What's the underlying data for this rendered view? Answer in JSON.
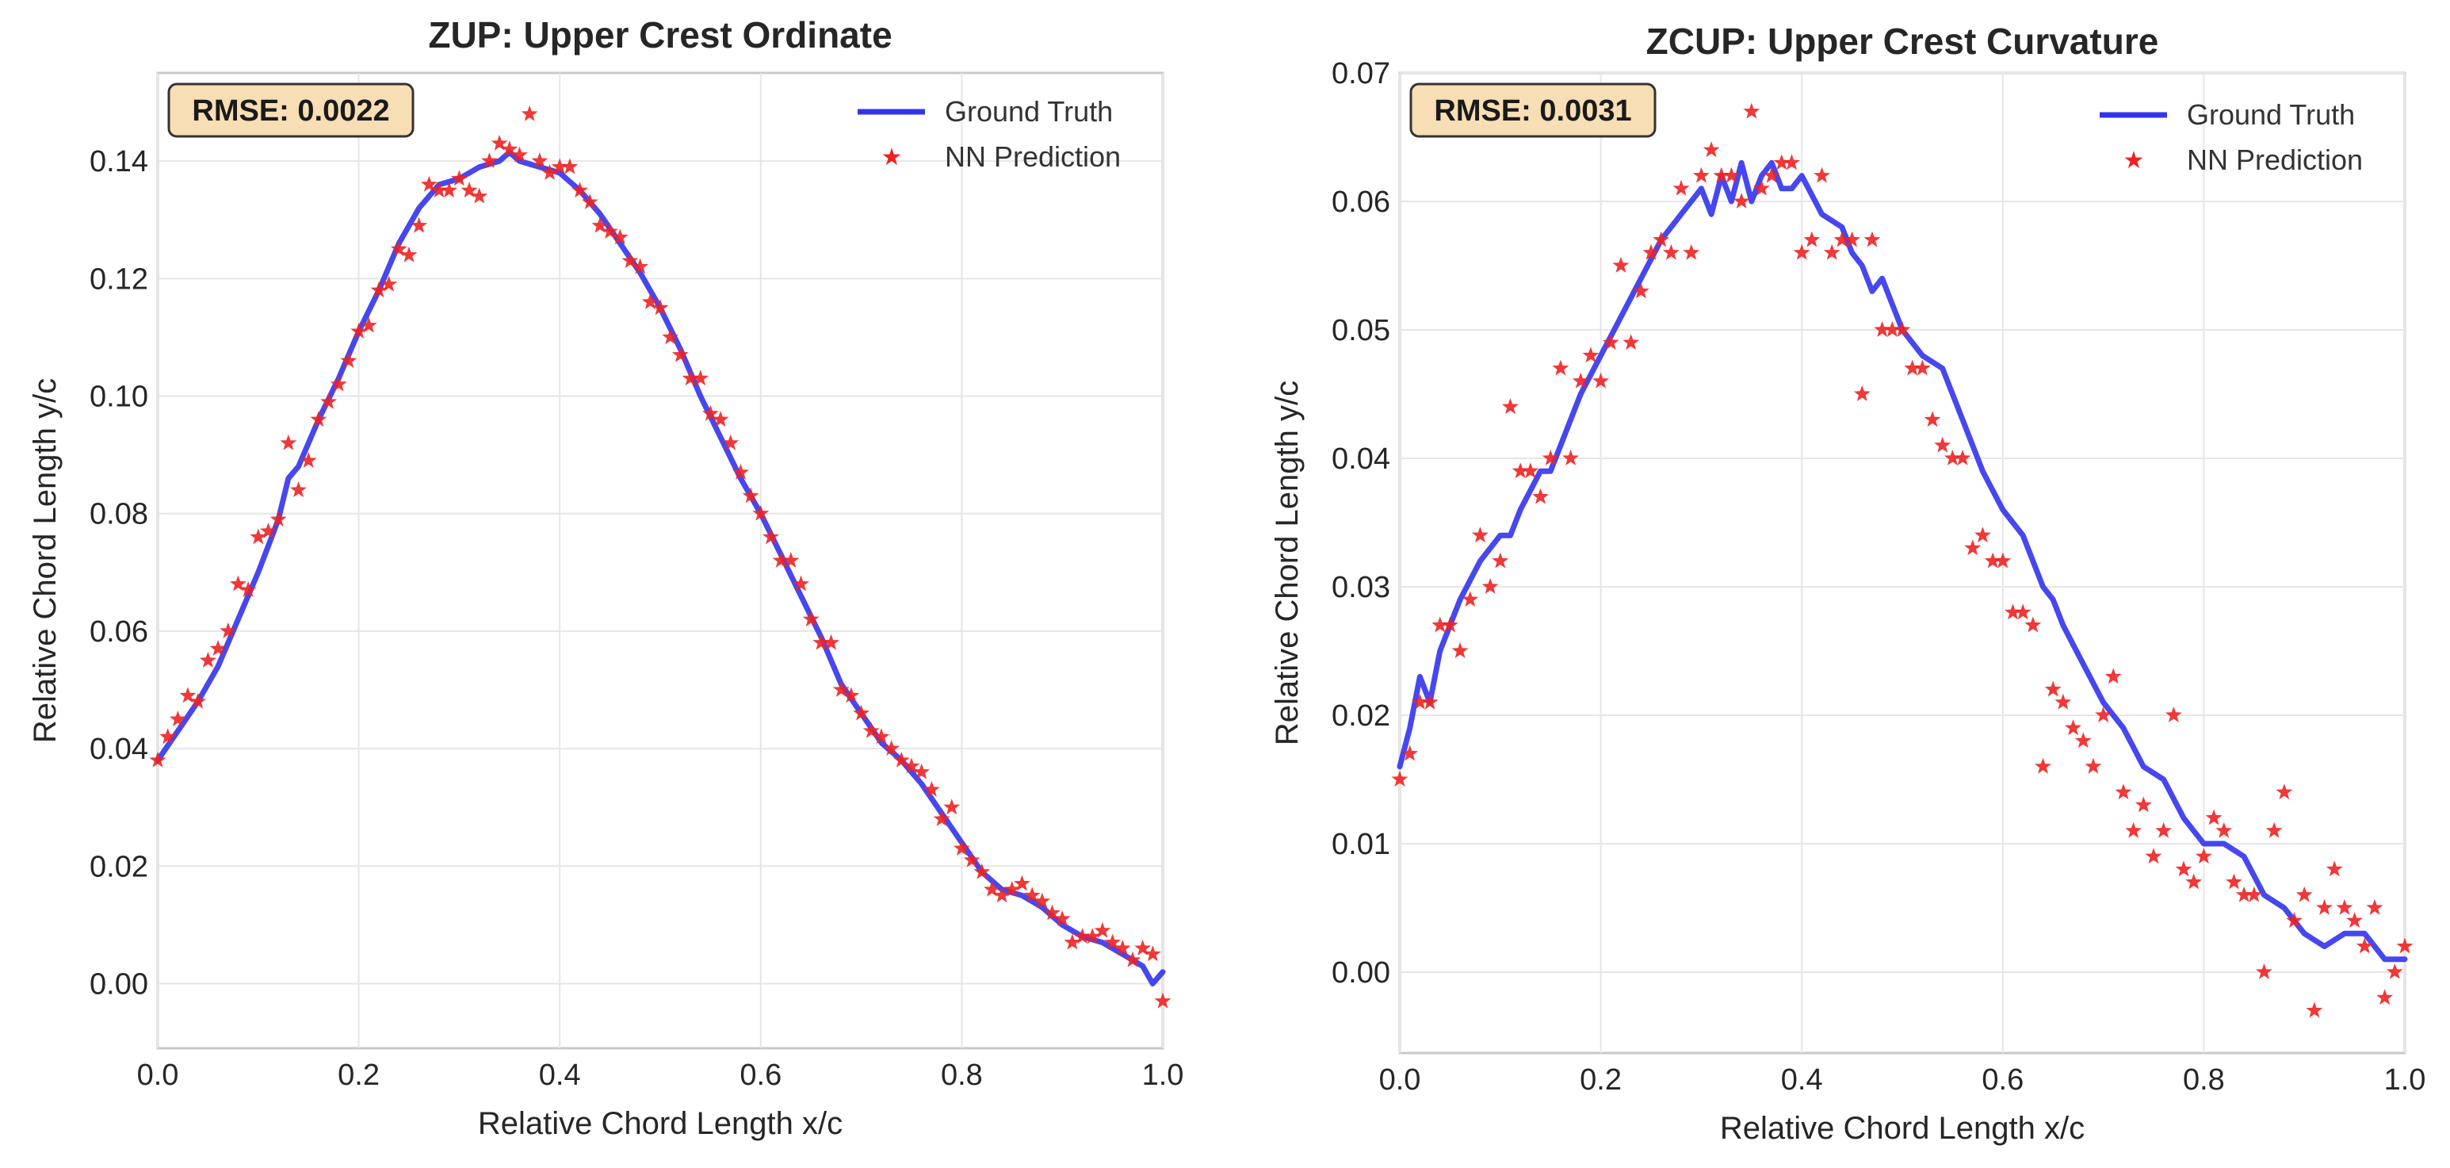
{
  "chart_data": [
    {
      "type": "line",
      "title": "ZUP: Upper Crest Ordinate",
      "xlabel": "Relative Chord Length x/c",
      "ylabel": "Relative Chord Length y/c",
      "xlim": [
        0.0,
        1.0
      ],
      "ylim": [
        -0.011,
        0.155
      ],
      "xticks": [
        0.0,
        0.2,
        0.4,
        0.6,
        0.8,
        1.0
      ],
      "xtick_labels": [
        "0.0",
        "0.2",
        "0.4",
        "0.6",
        "0.8",
        "1.0"
      ],
      "yticks": [
        0.0,
        0.02,
        0.04,
        0.06,
        0.08,
        0.1,
        0.12,
        0.14
      ],
      "ytick_labels": [
        "0.00",
        "0.02",
        "0.04",
        "0.06",
        "0.08",
        "0.10",
        "0.12",
        "0.14"
      ],
      "grid": true,
      "legend_position": "top-right",
      "annotation": "RMSE: 0.0022",
      "series": [
        {
          "name": "Ground Truth",
          "kind": "line",
          "color": "#3333ee",
          "x": [
            0.0,
            0.02,
            0.04,
            0.06,
            0.08,
            0.1,
            0.12,
            0.13,
            0.14,
            0.16,
            0.18,
            0.2,
            0.22,
            0.24,
            0.26,
            0.28,
            0.3,
            0.32,
            0.34,
            0.35,
            0.36,
            0.38,
            0.4,
            0.42,
            0.44,
            0.46,
            0.48,
            0.5,
            0.52,
            0.54,
            0.56,
            0.58,
            0.6,
            0.62,
            0.64,
            0.66,
            0.68,
            0.7,
            0.72,
            0.74,
            0.76,
            0.78,
            0.8,
            0.82,
            0.84,
            0.86,
            0.88,
            0.9,
            0.92,
            0.94,
            0.96,
            0.98,
            0.99,
            1.0
          ],
          "y": [
            0.038,
            0.043,
            0.048,
            0.054,
            0.062,
            0.07,
            0.079,
            0.086,
            0.088,
            0.096,
            0.103,
            0.111,
            0.118,
            0.126,
            0.132,
            0.136,
            0.137,
            0.139,
            0.14,
            0.1415,
            0.14,
            0.139,
            0.138,
            0.135,
            0.131,
            0.126,
            0.121,
            0.115,
            0.108,
            0.1,
            0.093,
            0.086,
            0.08,
            0.073,
            0.066,
            0.059,
            0.051,
            0.046,
            0.041,
            0.038,
            0.034,
            0.029,
            0.024,
            0.019,
            0.016,
            0.015,
            0.013,
            0.01,
            0.008,
            0.007,
            0.005,
            0.003,
            0.0,
            0.002
          ]
        },
        {
          "name": "NN Prediction",
          "kind": "scatter",
          "color": "#ee2222",
          "x": [
            0.0,
            0.01,
            0.02,
            0.03,
            0.04,
            0.05,
            0.06,
            0.07,
            0.08,
            0.09,
            0.1,
            0.11,
            0.12,
            0.13,
            0.14,
            0.15,
            0.16,
            0.17,
            0.18,
            0.19,
            0.2,
            0.21,
            0.22,
            0.23,
            0.24,
            0.25,
            0.26,
            0.27,
            0.28,
            0.29,
            0.3,
            0.31,
            0.32,
            0.33,
            0.34,
            0.35,
            0.36,
            0.37,
            0.38,
            0.39,
            0.4,
            0.41,
            0.42,
            0.43,
            0.44,
            0.45,
            0.46,
            0.47,
            0.48,
            0.49,
            0.5,
            0.51,
            0.52,
            0.53,
            0.54,
            0.55,
            0.56,
            0.57,
            0.58,
            0.59,
            0.6,
            0.61,
            0.62,
            0.63,
            0.64,
            0.65,
            0.66,
            0.67,
            0.68,
            0.69,
            0.7,
            0.71,
            0.72,
            0.73,
            0.74,
            0.75,
            0.76,
            0.77,
            0.78,
            0.79,
            0.8,
            0.81,
            0.82,
            0.83,
            0.84,
            0.85,
            0.86,
            0.87,
            0.88,
            0.89,
            0.9,
            0.91,
            0.92,
            0.93,
            0.94,
            0.95,
            0.96,
            0.97,
            0.98,
            0.99,
            1.0
          ],
          "y": [
            0.038,
            0.042,
            0.045,
            0.049,
            0.048,
            0.055,
            0.057,
            0.06,
            0.068,
            0.067,
            0.076,
            0.077,
            0.079,
            0.092,
            0.084,
            0.089,
            0.096,
            0.099,
            0.102,
            0.106,
            0.111,
            0.112,
            0.118,
            0.119,
            0.125,
            0.124,
            0.129,
            0.136,
            0.135,
            0.135,
            0.137,
            0.135,
            0.134,
            0.14,
            0.143,
            0.142,
            0.141,
            0.148,
            0.14,
            0.138,
            0.139,
            0.139,
            0.135,
            0.133,
            0.129,
            0.128,
            0.127,
            0.123,
            0.122,
            0.116,
            0.115,
            0.11,
            0.107,
            0.103,
            0.103,
            0.097,
            0.096,
            0.092,
            0.087,
            0.083,
            0.08,
            0.076,
            0.072,
            0.072,
            0.068,
            0.062,
            0.058,
            0.058,
            0.05,
            0.049,
            0.046,
            0.043,
            0.042,
            0.04,
            0.038,
            0.037,
            0.036,
            0.033,
            0.028,
            0.03,
            0.023,
            0.021,
            0.019,
            0.016,
            0.015,
            0.016,
            0.017,
            0.015,
            0.014,
            0.012,
            0.011,
            0.007,
            0.008,
            0.008,
            0.009,
            0.007,
            0.006,
            0.004,
            0.006,
            0.005,
            -0.003
          ]
        }
      ]
    },
    {
      "type": "line",
      "title": "ZCUP: Upper Crest Curvature",
      "xlabel": "Relative Chord Length x/c",
      "ylabel": "Relative Chord Length y/c",
      "xlim": [
        0.0,
        1.0
      ],
      "ylim": [
        -0.0063,
        0.07
      ],
      "xticks": [
        0.0,
        0.2,
        0.4,
        0.6,
        0.8,
        1.0
      ],
      "xtick_labels": [
        "0.0",
        "0.2",
        "0.4",
        "0.6",
        "0.8",
        "1.0"
      ],
      "yticks": [
        0.0,
        0.01,
        0.02,
        0.03,
        0.04,
        0.05,
        0.06,
        0.07
      ],
      "ytick_labels": [
        "0.00",
        "0.01",
        "0.02",
        "0.03",
        "0.04",
        "0.05",
        "0.06",
        "0.07"
      ],
      "grid": true,
      "legend_position": "top-right",
      "annotation": "RMSE: 0.0031",
      "series": [
        {
          "name": "Ground Truth",
          "kind": "line",
          "color": "#3333ee",
          "x": [
            0.0,
            0.01,
            0.02,
            0.03,
            0.04,
            0.05,
            0.06,
            0.08,
            0.1,
            0.11,
            0.12,
            0.14,
            0.15,
            0.16,
            0.18,
            0.2,
            0.22,
            0.24,
            0.26,
            0.28,
            0.3,
            0.31,
            0.32,
            0.33,
            0.34,
            0.35,
            0.36,
            0.37,
            0.38,
            0.39,
            0.4,
            0.42,
            0.44,
            0.45,
            0.46,
            0.47,
            0.48,
            0.5,
            0.52,
            0.54,
            0.56,
            0.58,
            0.6,
            0.62,
            0.64,
            0.65,
            0.66,
            0.68,
            0.7,
            0.72,
            0.74,
            0.76,
            0.78,
            0.8,
            0.82,
            0.84,
            0.86,
            0.88,
            0.9,
            0.92,
            0.94,
            0.96,
            0.98,
            0.99,
            1.0
          ],
          "y": [
            0.016,
            0.019,
            0.023,
            0.021,
            0.025,
            0.027,
            0.029,
            0.032,
            0.034,
            0.034,
            0.036,
            0.039,
            0.039,
            0.041,
            0.045,
            0.048,
            0.051,
            0.054,
            0.057,
            0.059,
            0.061,
            0.059,
            0.062,
            0.06,
            0.063,
            0.06,
            0.062,
            0.063,
            0.061,
            0.061,
            0.062,
            0.059,
            0.058,
            0.056,
            0.055,
            0.053,
            0.054,
            0.05,
            0.048,
            0.047,
            0.043,
            0.039,
            0.036,
            0.034,
            0.03,
            0.029,
            0.027,
            0.024,
            0.021,
            0.019,
            0.016,
            0.015,
            0.012,
            0.01,
            0.01,
            0.009,
            0.006,
            0.005,
            0.003,
            0.002,
            0.003,
            0.003,
            0.001,
            0.001,
            0.001
          ]
        },
        {
          "name": "NN Prediction",
          "kind": "scatter",
          "color": "#ee2222",
          "x": [
            0.0,
            0.01,
            0.02,
            0.03,
            0.04,
            0.05,
            0.06,
            0.07,
            0.08,
            0.09,
            0.1,
            0.11,
            0.12,
            0.13,
            0.14,
            0.15,
            0.16,
            0.17,
            0.18,
            0.19,
            0.2,
            0.21,
            0.22,
            0.23,
            0.24,
            0.25,
            0.26,
            0.27,
            0.28,
            0.29,
            0.3,
            0.31,
            0.32,
            0.33,
            0.34,
            0.35,
            0.36,
            0.37,
            0.38,
            0.39,
            0.4,
            0.41,
            0.42,
            0.43,
            0.44,
            0.45,
            0.46,
            0.47,
            0.48,
            0.49,
            0.5,
            0.51,
            0.52,
            0.53,
            0.54,
            0.55,
            0.56,
            0.57,
            0.58,
            0.59,
            0.6,
            0.61,
            0.62,
            0.63,
            0.64,
            0.65,
            0.66,
            0.67,
            0.68,
            0.69,
            0.7,
            0.71,
            0.72,
            0.73,
            0.74,
            0.75,
            0.76,
            0.77,
            0.78,
            0.79,
            0.8,
            0.81,
            0.82,
            0.83,
            0.84,
            0.85,
            0.86,
            0.87,
            0.88,
            0.89,
            0.9,
            0.91,
            0.92,
            0.93,
            0.94,
            0.95,
            0.96,
            0.97,
            0.98,
            0.99,
            1.0
          ],
          "y": [
            0.015,
            0.017,
            0.021,
            0.021,
            0.027,
            0.027,
            0.025,
            0.029,
            0.034,
            0.03,
            0.032,
            0.044,
            0.039,
            0.039,
            0.037,
            0.04,
            0.047,
            0.04,
            0.046,
            0.048,
            0.046,
            0.049,
            0.055,
            0.049,
            0.053,
            0.056,
            0.057,
            0.056,
            0.061,
            0.056,
            0.062,
            0.064,
            0.062,
            0.062,
            0.06,
            0.067,
            0.061,
            0.062,
            0.063,
            0.063,
            0.056,
            0.057,
            0.062,
            0.056,
            0.057,
            0.057,
            0.045,
            0.057,
            0.05,
            0.05,
            0.05,
            0.047,
            0.047,
            0.043,
            0.041,
            0.04,
            0.04,
            0.033,
            0.034,
            0.032,
            0.032,
            0.028,
            0.028,
            0.027,
            0.016,
            0.022,
            0.021,
            0.019,
            0.018,
            0.016,
            0.02,
            0.023,
            0.014,
            0.011,
            0.013,
            0.009,
            0.011,
            0.02,
            0.008,
            0.007,
            0.009,
            0.012,
            0.011,
            0.007,
            0.006,
            0.006,
            0.0,
            0.011,
            0.014,
            0.004,
            0.006,
            -0.003,
            0.005,
            0.008,
            0.005,
            0.004,
            0.002,
            0.005,
            -0.002,
            0.0,
            0.002
          ]
        }
      ]
    }
  ]
}
